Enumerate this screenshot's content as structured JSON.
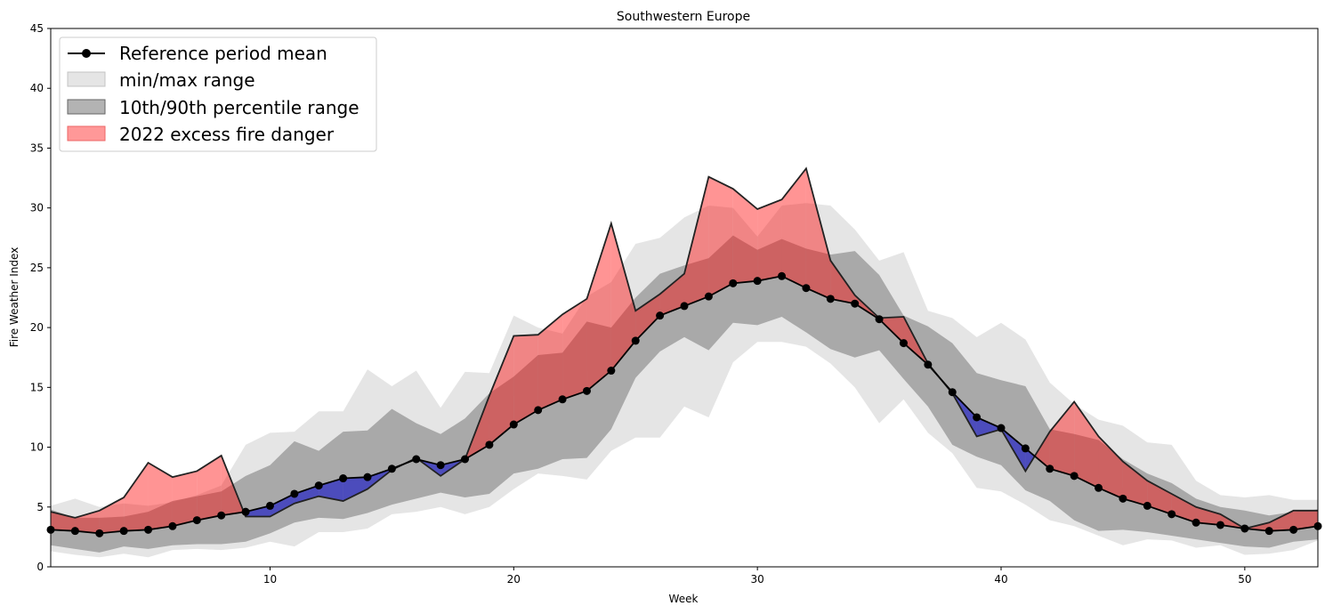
{
  "chart_data": {
    "type": "area",
    "title": "Southwestern Europe",
    "xlabel": "Week",
    "ylabel": "Fire Weather Index",
    "xlim": [
      1,
      53
    ],
    "ylim": [
      0,
      45
    ],
    "xticks": [
      10,
      20,
      30,
      40,
      50
    ],
    "yticks": [
      0,
      5,
      10,
      15,
      20,
      25,
      30,
      35,
      40,
      45
    ],
    "grid": false,
    "legend_position": "upper-left",
    "legend": [
      {
        "label": "Reference period mean",
        "kind": "line-marker",
        "color": "#000000"
      },
      {
        "label": "min/max range",
        "kind": "fill",
        "color": "#d3d3d3"
      },
      {
        "label": "10th/90th percentile range",
        "kind": "fill",
        "color": "#808080"
      },
      {
        "label": "2022 excess fire danger",
        "kind": "fill",
        "color": "#ff6666"
      }
    ],
    "colors": {
      "mean": "#000000",
      "minmax": "#d3d3d3",
      "pct": "#808080",
      "excess": "#ff0000",
      "deficit": "#0000cc",
      "line2022": "#222222"
    },
    "weeks": [
      1,
      2,
      3,
      4,
      5,
      6,
      7,
      8,
      9,
      10,
      11,
      12,
      13,
      14,
      15,
      16,
      17,
      18,
      19,
      20,
      21,
      22,
      23,
      24,
      25,
      26,
      27,
      28,
      29,
      30,
      31,
      32,
      33,
      34,
      35,
      36,
      37,
      38,
      39,
      40,
      41,
      42,
      43,
      44,
      45,
      46,
      47,
      48,
      49,
      50,
      51,
      52,
      53
    ],
    "series": [
      {
        "name": "Reference period mean",
        "values": [
          3.1,
          3.0,
          2.8,
          3.0,
          3.1,
          3.4,
          3.9,
          4.3,
          4.6,
          5.1,
          6.1,
          6.8,
          7.4,
          7.5,
          8.2,
          9.0,
          8.5,
          9.0,
          10.2,
          11.9,
          13.1,
          14.0,
          14.7,
          16.4,
          18.9,
          21.0,
          21.8,
          22.6,
          23.7,
          23.9,
          24.3,
          23.3,
          22.4,
          22.0,
          20.7,
          18.7,
          16.9,
          14.6,
          12.5,
          11.6,
          9.9,
          8.2,
          7.6,
          6.6,
          5.7,
          5.1,
          4.4,
          3.7,
          3.5,
          3.2,
          3.0,
          3.1,
          3.4
        ]
      },
      {
        "name": "min",
        "values": [
          1.3,
          1.0,
          0.8,
          1.1,
          0.8,
          1.4,
          1.5,
          1.4,
          1.6,
          2.1,
          1.7,
          2.9,
          2.9,
          3.2,
          4.4,
          4.6,
          5.0,
          4.4,
          5.0,
          6.5,
          7.8,
          7.6,
          7.3,
          9.7,
          10.8,
          10.8,
          13.4,
          12.5,
          17.1,
          18.8,
          18.8,
          18.4,
          17.0,
          15.0,
          12.0,
          14.0,
          11.2,
          9.5,
          6.6,
          6.3,
          5.2,
          3.9,
          3.4,
          2.6,
          1.8,
          2.3,
          2.2,
          1.6,
          1.8,
          1.0,
          1.1,
          1.4,
          2.2
        ]
      },
      {
        "name": "max",
        "values": [
          5.1,
          5.7,
          5.0,
          5.3,
          5.1,
          5.4,
          6.0,
          6.8,
          10.2,
          11.2,
          11.3,
          13.0,
          13.0,
          16.5,
          15.1,
          16.4,
          13.3,
          16.3,
          16.2,
          21.0,
          20.0,
          19.5,
          22.6,
          23.8,
          27.0,
          27.5,
          29.2,
          30.2,
          30.0,
          27.6,
          30.2,
          30.4,
          30.2,
          28.2,
          25.6,
          26.3,
          21.4,
          20.8,
          19.2,
          20.4,
          19.0,
          15.4,
          13.6,
          12.3,
          11.8,
          10.4,
          10.2,
          7.2,
          6.0,
          5.8,
          6.0,
          5.6,
          5.6
        ]
      },
      {
        "name": "p10",
        "values": [
          1.8,
          1.5,
          1.2,
          1.7,
          1.5,
          1.8,
          1.9,
          1.9,
          2.1,
          2.8,
          3.7,
          4.1,
          4.0,
          4.5,
          5.2,
          5.7,
          6.2,
          5.8,
          6.1,
          7.8,
          8.2,
          9.0,
          9.1,
          11.5,
          15.8,
          18.0,
          19.2,
          18.1,
          20.4,
          20.2,
          20.9,
          19.6,
          18.2,
          17.5,
          18.1,
          15.7,
          13.4,
          10.2,
          9.2,
          8.5,
          6.4,
          5.5,
          3.9,
          3.0,
          3.1,
          2.9,
          2.6,
          2.3,
          2.0,
          1.7,
          1.6,
          2.1,
          2.3
        ]
      },
      {
        "name": "p90",
        "values": [
          4.8,
          4.1,
          4.1,
          4.2,
          4.6,
          5.5,
          5.9,
          6.3,
          7.6,
          8.5,
          10.5,
          9.7,
          11.3,
          11.4,
          13.2,
          12.0,
          11.1,
          12.4,
          14.5,
          15.9,
          17.7,
          17.9,
          20.5,
          20.0,
          22.5,
          24.5,
          25.2,
          25.8,
          27.7,
          26.5,
          27.4,
          26.6,
          26.1,
          26.4,
          24.4,
          21.0,
          20.1,
          18.7,
          16.2,
          15.6,
          15.1,
          11.5,
          11.1,
          10.6,
          9.0,
          7.8,
          7.0,
          5.7,
          5.0,
          4.7,
          4.3,
          4.6,
          4.8
        ]
      },
      {
        "name": "2022",
        "values": [
          4.6,
          4.1,
          4.7,
          5.8,
          8.7,
          7.5,
          8.0,
          9.3,
          4.2,
          4.2,
          5.3,
          5.9,
          5.5,
          6.5,
          8.1,
          9.1,
          7.6,
          9.0,
          14.3,
          19.3,
          19.4,
          21.1,
          22.4,
          28.7,
          21.4,
          22.8,
          24.5,
          32.6,
          31.6,
          29.9,
          30.7,
          33.3,
          25.6,
          22.7,
          20.8,
          20.9,
          17.0,
          14.5,
          10.9,
          11.5,
          8.0,
          11.3,
          13.8,
          10.9,
          8.8,
          7.2,
          6.1,
          5.0,
          4.4,
          3.2,
          3.7,
          4.7,
          4.7
        ]
      }
    ]
  }
}
